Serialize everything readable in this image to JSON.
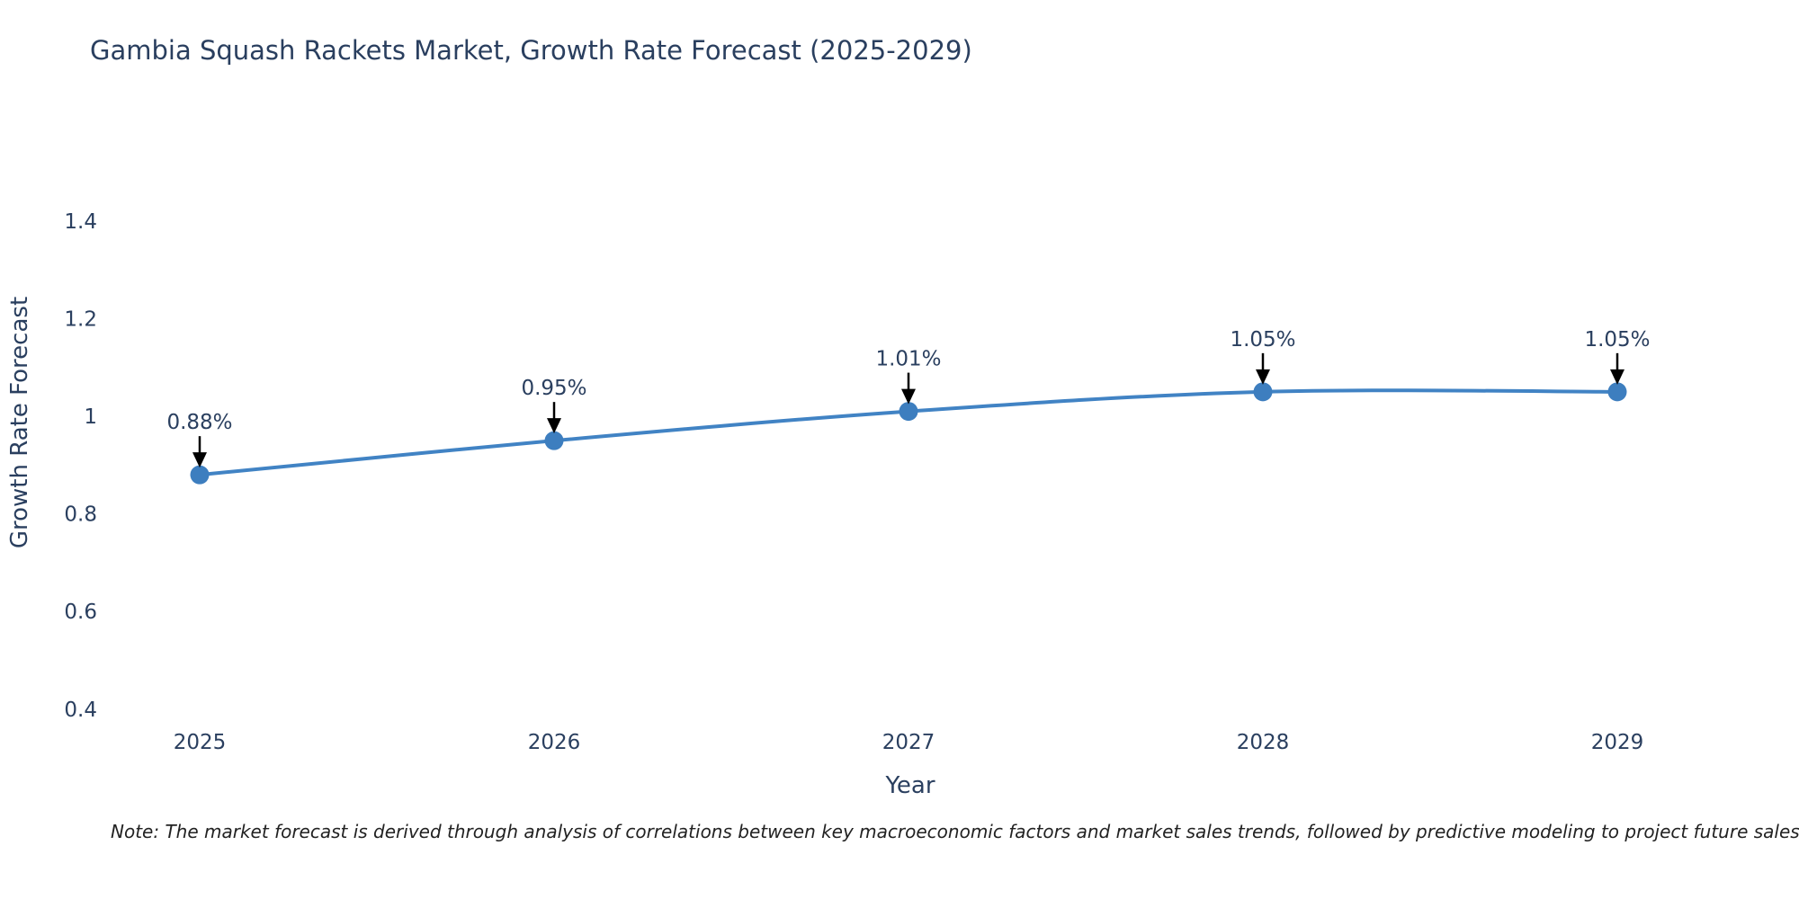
{
  "title": "Gambia Squash Rackets Market, Growth Rate Forecast (2025-2029)",
  "note": "Note: The market forecast is derived through analysis of correlations between key macroeconomic factors and market sales trends, followed by predictive modeling to project future sales",
  "colors": {
    "line": "#4183c4",
    "marker": "#3d7ebf",
    "text": "#2a3f5f",
    "axis": "#000000",
    "arrow": "#000000"
  },
  "chart_data": {
    "type": "line",
    "x": [
      2025,
      2026,
      2027,
      2028,
      2029
    ],
    "values": [
      0.88,
      0.95,
      1.01,
      1.05,
      1.05
    ],
    "point_labels": [
      "0.88%",
      "0.95%",
      "1.01%",
      "1.05%",
      "1.05%"
    ],
    "title": "Gambia Squash Rackets Market, Growth Rate Forecast (2025-2029)",
    "xlabel": "Year",
    "ylabel": "Growth Rate Forecast",
    "ylim": [
      0.37,
      1.55
    ],
    "yticks": [
      "0.4",
      "0.6",
      "0.8",
      "1",
      "1.2",
      "1.4"
    ],
    "ytick_values": [
      0.4,
      0.6,
      0.8,
      1.0,
      1.2,
      1.4
    ],
    "xticks": [
      "2025",
      "2026",
      "2027",
      "2028",
      "2029"
    ],
    "grid": false,
    "legend": "none",
    "line_shape": "spline",
    "markers": true,
    "annotations": "value labels with down arrows above each point"
  }
}
